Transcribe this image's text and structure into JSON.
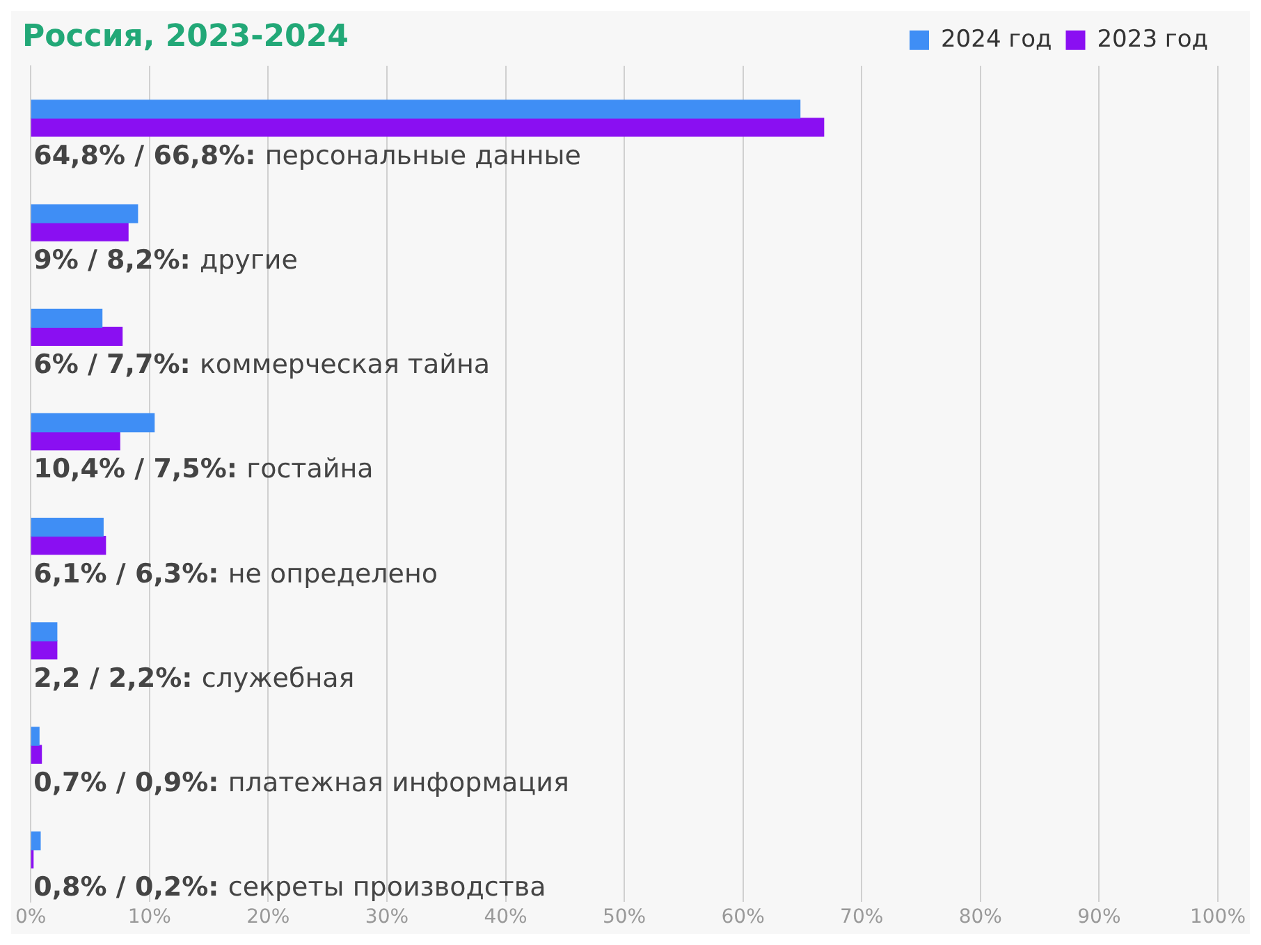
{
  "chart_data": {
    "type": "bar",
    "orientation": "horizontal",
    "title": "Россия, 2023-2024",
    "categories": [
      "64,8% / 66,8%: персональные данные",
      "9% / 8,2%: другие",
      "6% / 7,7%: коммерческая тайна",
      "10,4% / 7,5%: гостайна",
      "6,1% / 6,3%: не определено",
      "2,2 / 2,2%: служебная",
      "0,7% / 0,9%: платежная информация",
      "0,8% / 0,2%: секреты производства"
    ],
    "series": [
      {
        "name": "2024 год",
        "color": "#3f8ef5",
        "values": [
          64.8,
          9,
          6,
          10.4,
          6.1,
          2.2,
          0.7,
          0.8
        ]
      },
      {
        "name": "2023 год",
        "color": "#8a0ff2",
        "values": [
          66.8,
          8.2,
          7.7,
          7.5,
          6.3,
          2.2,
          0.9,
          0.2
        ]
      }
    ],
    "xlim": [
      0,
      100
    ],
    "xticks": [
      {
        "value": 0,
        "label": "0%"
      },
      {
        "value": 10,
        "label": "10%"
      },
      {
        "value": 20,
        "label": "20%"
      },
      {
        "value": 30,
        "label": "30%"
      },
      {
        "value": 40,
        "label": "40%"
      },
      {
        "value": 50,
        "label": "50%"
      },
      {
        "value": 60,
        "label": "60%"
      },
      {
        "value": 70,
        "label": "70%"
      },
      {
        "value": 80,
        "label": "80%"
      },
      {
        "value": 90,
        "label": "90%"
      },
      {
        "value": 100,
        "label": "100%"
      }
    ],
    "grid": "x",
    "legend": "top right"
  }
}
